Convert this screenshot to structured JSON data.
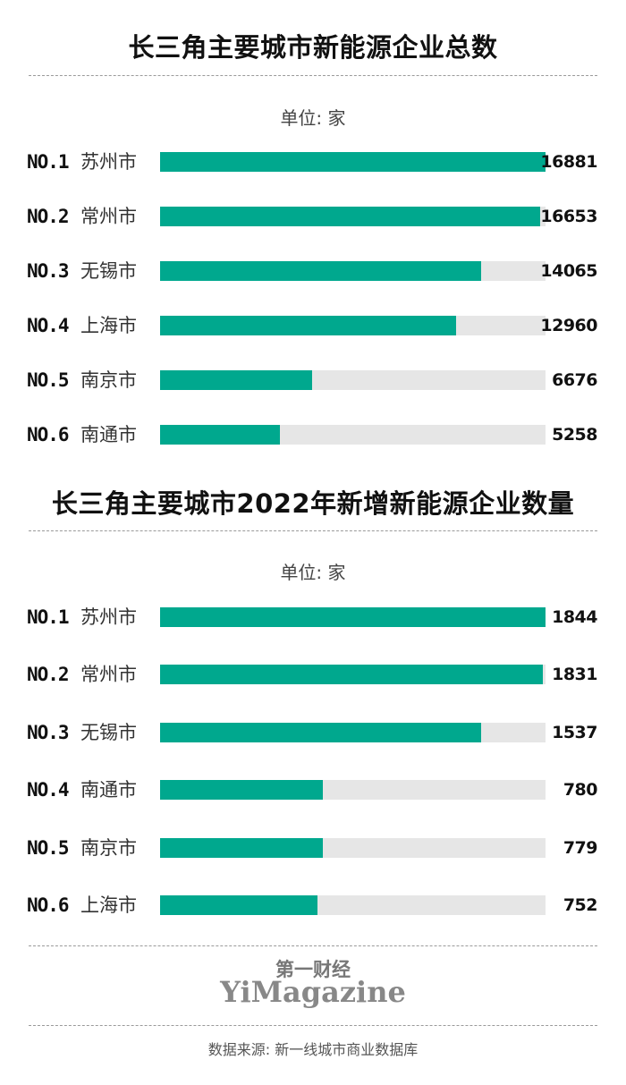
{
  "chart_data": [
    {
      "type": "bar",
      "orientation": "horizontal",
      "title": "长三角主要城市新能源企业总数",
      "unit_label": "单位: 家",
      "ranks": [
        "NO.1",
        "NO.2",
        "NO.3",
        "NO.4",
        "NO.5",
        "NO.6"
      ],
      "categories": [
        "苏州市",
        "常州市",
        "无锡市",
        "上海市",
        "南京市",
        "南通市"
      ],
      "values": [
        16881,
        16653,
        14065,
        12960,
        6676,
        5258
      ],
      "xlim": [
        0,
        16881
      ],
      "grid": false,
      "colors": {
        "bar": "#00a88e",
        "track": "#e6e6e6"
      }
    },
    {
      "type": "bar",
      "orientation": "horizontal",
      "title": "长三角主要城市2022年新增新能源企业数量",
      "unit_label": "单位: 家",
      "ranks": [
        "NO.1",
        "NO.2",
        "NO.3",
        "NO.4",
        "NO.5",
        "NO.6"
      ],
      "categories": [
        "苏州市",
        "常州市",
        "无锡市",
        "南通市",
        "南京市",
        "上海市"
      ],
      "values": [
        1844,
        1831,
        1537,
        780,
        779,
        752
      ],
      "xlim": [
        0,
        1844
      ],
      "grid": false,
      "colors": {
        "bar": "#00a88e",
        "track": "#e6e6e6"
      }
    }
  ],
  "brand": {
    "cn": "第一财经",
    "en": "YiMagazine"
  },
  "source": "数据来源: 新一线城市商业数据库"
}
